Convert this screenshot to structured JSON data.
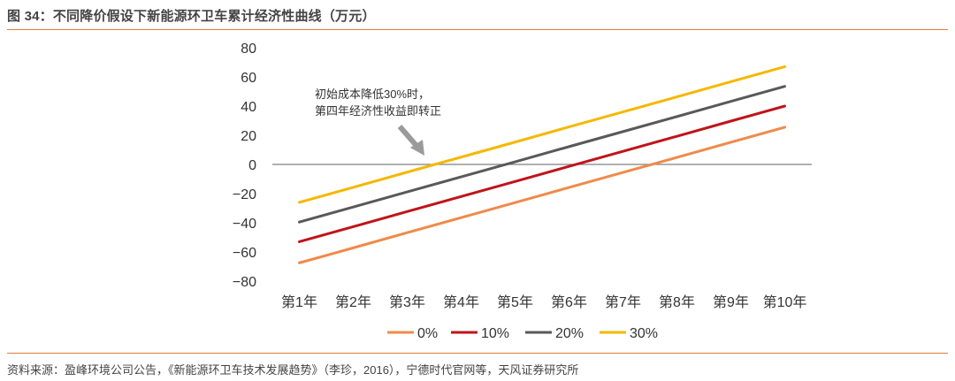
{
  "figure": {
    "title": "图 34：不同降价假设下新能源环卫车累计经济性曲线（万元）",
    "source": "资料来源：盈峰环境公司公告，《新能源环卫车技术发展趋势》（李珍，2016），宁德时代官网等，天风证券研究所"
  },
  "colors": {
    "accent_rule": "#e07b39",
    "zero_line": "#808080"
  },
  "chart_data": {
    "type": "line",
    "categories": [
      "第1年",
      "第2年",
      "第3年",
      "第4年",
      "第5年",
      "第6年",
      "第7年",
      "第8年",
      "第9年",
      "第10年"
    ],
    "ylim": [
      -80,
      80
    ],
    "yticks": [
      80,
      60,
      40,
      20,
      0,
      -20,
      -40,
      -60,
      -80
    ],
    "ytick_labels": [
      "80",
      "60",
      "40",
      "20",
      "0",
      "−20",
      "−40",
      "−60",
      "−80"
    ],
    "grid": false,
    "legend_position": "bottom",
    "series": [
      {
        "name": "0%",
        "color": "#f08a4b",
        "values": [
          -67.5,
          -57.2,
          -46.8,
          -36.5,
          -26.2,
          -15.8,
          -5.5,
          4.8,
          15.2,
          25.5
        ]
      },
      {
        "name": "10%",
        "color": "#c0141b",
        "values": [
          -53.0,
          -42.7,
          -32.3,
          -22.0,
          -11.7,
          -1.3,
          9.0,
          19.3,
          29.7,
          40.0
        ]
      },
      {
        "name": "20%",
        "color": "#595959",
        "values": [
          -39.5,
          -29.2,
          -18.8,
          -8.5,
          1.8,
          12.2,
          22.5,
          32.8,
          43.2,
          53.5
        ]
      },
      {
        "name": "30%",
        "color": "#f5b800",
        "values": [
          -26.0,
          -15.7,
          -5.3,
          5.0,
          15.3,
          25.7,
          36.0,
          46.3,
          56.7,
          67.0
        ]
      }
    ],
    "annotation": {
      "lines": [
        "初始成本降低30%时，",
        "第四年经济性收益即转正"
      ]
    }
  }
}
